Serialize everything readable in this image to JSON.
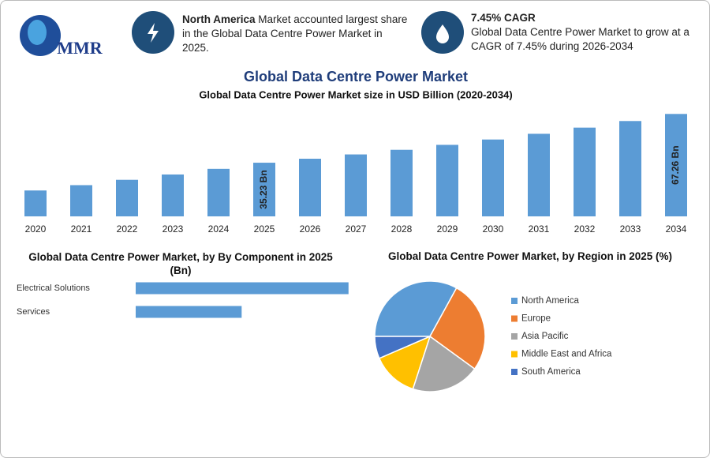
{
  "logo": {
    "text": "MMR"
  },
  "info": [
    {
      "highlight": "North America",
      "text": "Market accounted largest share in the Global Data Centre Power Market in 2025."
    },
    {
      "title": "7.45% CAGR",
      "text": "Global Data Centre Power Market to grow at a CAGR of 7.45% during 2026-2034"
    }
  ],
  "chart_data": [
    {
      "type": "bar",
      "title": "Global Data Centre Power Market",
      "subtitle": "Global Data Centre Power Market size in USD Billion (2020-2034)",
      "categories": [
        "2020",
        "2021",
        "2022",
        "2023",
        "2024",
        "2025",
        "2026",
        "2027",
        "2028",
        "2029",
        "2030",
        "2031",
        "2032",
        "2033",
        "2034"
      ],
      "values": [
        17.0,
        20.5,
        24.0,
        27.5,
        31.2,
        35.23,
        37.85,
        40.67,
        43.7,
        46.96,
        50.46,
        54.22,
        58.26,
        62.6,
        67.26
      ],
      "value_labels": [
        null,
        null,
        null,
        null,
        null,
        "35.23 Bn",
        null,
        null,
        null,
        null,
        null,
        null,
        null,
        null,
        "67.26 Bn"
      ],
      "color": "#5b9bd5",
      "ylim": [
        0,
        70
      ]
    },
    {
      "type": "hbar",
      "title": "Global Data Centre Power Market, by By Component in 2025 (Bn)",
      "categories": [
        "Electrical Solutions",
        "Services"
      ],
      "values": [
        23.5,
        11.7
      ],
      "color": "#5b9bd5",
      "xlim": [
        0,
        25
      ]
    },
    {
      "type": "pie",
      "title": "Global Data Centre Power Market, by Region in 2025 (%)",
      "series": [
        {
          "name": "North America",
          "color": "#5b9bd5",
          "value": 33
        },
        {
          "name": "Europe",
          "color": "#ed7d31",
          "value": 27
        },
        {
          "name": "Asia Pacific",
          "color": "#a5a5a5",
          "value": 20
        },
        {
          "name": "Middle East and Africa",
          "color": "#ffc000",
          "value": 13.5
        },
        {
          "name": "South America",
          "color": "#4472c4",
          "value": 6.5
        }
      ]
    }
  ]
}
